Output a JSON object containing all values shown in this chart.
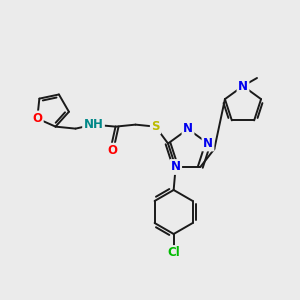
{
  "bg_color": "#ebebeb",
  "bond_color": "#1a1a1a",
  "bond_width": 1.4,
  "double_sep": 2.5,
  "atom_colors": {
    "O": "#ff0000",
    "N": "#0000ee",
    "S": "#bbbb00",
    "Cl": "#00bb00",
    "H": "#008888",
    "C": "#1a1a1a"
  },
  "font_size": 8.5,
  "fig_size": [
    3.0,
    3.0
  ],
  "dpi": 100
}
